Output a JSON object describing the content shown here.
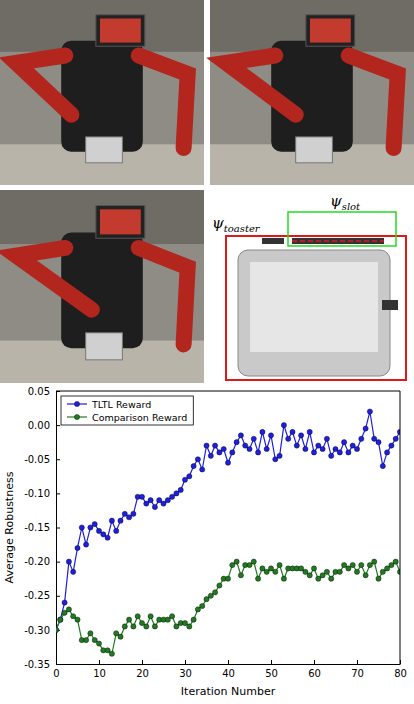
{
  "chart_data": {
    "type": "line",
    "xlabel": "Iteration Number",
    "ylabel": "Average Robustness",
    "x": [
      0,
      1,
      2,
      3,
      4,
      5,
      6,
      7,
      8,
      9,
      10,
      11,
      12,
      13,
      14,
      15,
      16,
      17,
      18,
      19,
      20,
      21,
      22,
      23,
      24,
      25,
      26,
      27,
      28,
      29,
      30,
      31,
      32,
      33,
      34,
      35,
      36,
      37,
      38,
      39,
      40,
      41,
      42,
      43,
      44,
      45,
      46,
      47,
      48,
      49,
      50,
      51,
      52,
      53,
      54,
      55,
      56,
      57,
      58,
      59,
      60,
      61,
      62,
      63,
      64,
      65,
      66,
      67,
      68,
      69,
      70,
      71,
      72,
      73,
      74,
      75,
      76,
      77,
      78,
      79,
      80
    ],
    "series": [
      {
        "name": "TLTL Reward",
        "color": "#1f1fe0",
        "marker": "circle",
        "line_style": "solid",
        "values": [
          -0.3,
          -0.285,
          -0.26,
          -0.2,
          -0.215,
          -0.18,
          -0.15,
          -0.175,
          -0.15,
          -0.145,
          -0.155,
          -0.16,
          -0.165,
          -0.14,
          -0.155,
          -0.14,
          -0.13,
          -0.135,
          -0.13,
          -0.105,
          -0.105,
          -0.115,
          -0.11,
          -0.12,
          -0.11,
          -0.115,
          -0.11,
          -0.105,
          -0.1,
          -0.095,
          -0.08,
          -0.075,
          -0.06,
          -0.05,
          -0.065,
          -0.03,
          -0.045,
          -0.03,
          -0.04,
          -0.035,
          -0.055,
          -0.04,
          -0.025,
          -0.015,
          -0.03,
          -0.035,
          -0.02,
          -0.04,
          -0.01,
          -0.035,
          -0.015,
          -0.05,
          -0.045,
          0.0,
          -0.02,
          -0.01,
          -0.03,
          -0.015,
          -0.035,
          -0.01,
          -0.04,
          -0.03,
          -0.035,
          -0.02,
          -0.045,
          -0.035,
          -0.04,
          -0.025,
          -0.04,
          -0.03,
          -0.035,
          -0.02,
          -0.005,
          0.02,
          -0.02,
          -0.025,
          -0.06,
          -0.04,
          -0.03,
          -0.02,
          -0.01
        ]
      },
      {
        "name": "Comparison Reward",
        "color": "#217a21",
        "marker": "circle",
        "line_style": "solid",
        "values": [
          -0.3,
          -0.285,
          -0.275,
          -0.27,
          -0.28,
          -0.285,
          -0.315,
          -0.315,
          -0.305,
          -0.315,
          -0.32,
          -0.33,
          -0.33,
          -0.335,
          -0.305,
          -0.31,
          -0.295,
          -0.285,
          -0.295,
          -0.28,
          -0.29,
          -0.295,
          -0.28,
          -0.295,
          -0.285,
          -0.285,
          -0.285,
          -0.28,
          -0.295,
          -0.29,
          -0.29,
          -0.295,
          -0.285,
          -0.27,
          -0.265,
          -0.255,
          -0.25,
          -0.245,
          -0.235,
          -0.225,
          -0.225,
          -0.205,
          -0.2,
          -0.22,
          -0.205,
          -0.205,
          -0.2,
          -0.225,
          -0.21,
          -0.215,
          -0.21,
          -0.215,
          -0.205,
          -0.225,
          -0.21,
          -0.21,
          -0.21,
          -0.21,
          -0.215,
          -0.22,
          -0.21,
          -0.225,
          -0.22,
          -0.215,
          -0.225,
          -0.215,
          -0.215,
          -0.205,
          -0.21,
          -0.205,
          -0.215,
          -0.205,
          -0.22,
          -0.205,
          -0.2,
          -0.225,
          -0.215,
          -0.21,
          -0.205,
          -0.2,
          -0.215
        ]
      }
    ],
    "xlim": [
      0,
      80
    ],
    "xticks": [
      0,
      10,
      20,
      30,
      40,
      50,
      60,
      70,
      80
    ],
    "ylim": [
      -0.35,
      0.05
    ],
    "yticks": [
      {
        "value": -0.35,
        "label": "-0.35"
      },
      {
        "value": -0.3,
        "label": "-0.30"
      },
      {
        "value": -0.25,
        "label": "-0.25"
      },
      {
        "value": -0.2,
        "label": "-0.20"
      },
      {
        "value": -0.15,
        "label": "-0.15"
      },
      {
        "value": -0.1,
        "label": "-0.10"
      },
      {
        "value": -0.05,
        "label": "-0.05"
      },
      {
        "value": 0,
        "label": "0.00"
      },
      {
        "value": 0.05,
        "label": "0.05"
      }
    ],
    "legend": "upper left",
    "grid": false
  },
  "diagram": {
    "labels": [
      {
        "symbol": "ψ",
        "subscript": "slot"
      },
      {
        "symbol": "ψ",
        "subscript": "toaster"
      }
    ]
  }
}
